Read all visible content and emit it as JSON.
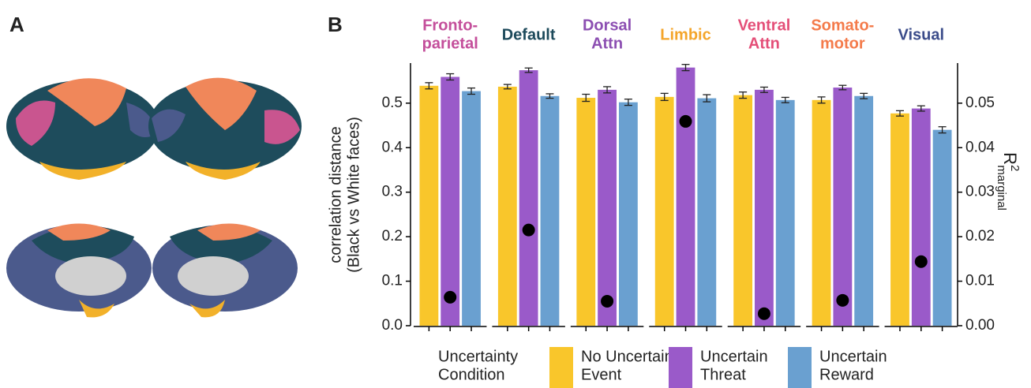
{
  "panels": {
    "a": "A",
    "b": "B"
  },
  "chart_data": {
    "type": "bar",
    "facets": [
      {
        "title": "Fronto-\nparietal",
        "color": "#c44f9b"
      },
      {
        "title": "Default",
        "color": "#1d4a5b"
      },
      {
        "title": "Dorsal\nAttn",
        "color": "#8c4fb2"
      },
      {
        "title": "Limbic",
        "color": "#f4a52a"
      },
      {
        "title": "Ventral\nAttn",
        "color": "#e44f78"
      },
      {
        "title": "Somato-\nmotor",
        "color": "#f47b4b"
      },
      {
        "title": "Visual",
        "color": "#3b4c8a"
      }
    ],
    "ylabel": "correlation distance\n(Black vs White faces)",
    "y2label": {
      "main": "R",
      "sup": "2",
      "sub": "marginal"
    },
    "ylim": [
      0,
      0.59
    ],
    "yticks": [
      {
        "value": 0,
        "label": "0.0"
      },
      0.1,
      0.2,
      0.3,
      0.4,
      0.5
    ],
    "y2lim": [
      0,
      0.059
    ],
    "y2ticks": [
      {
        "value": 0,
        "label": "0.00"
      },
      0.01,
      0.02,
      0.03,
      0.04,
      0.05
    ],
    "series": [
      {
        "name": "No Uncertain\nEvent",
        "color": "#f9c62b",
        "values": [
          0.539,
          0.537,
          0.512,
          0.514,
          0.518,
          0.507,
          0.477
        ],
        "errors": [
          0.007,
          0.005,
          0.008,
          0.008,
          0.007,
          0.007,
          0.006
        ]
      },
      {
        "name": "Uncertain\nThreat",
        "color": "#9a5ac9",
        "values": [
          0.559,
          0.574,
          0.53,
          0.58,
          0.53,
          0.535,
          0.488
        ],
        "errors": [
          0.007,
          0.005,
          0.007,
          0.007,
          0.006,
          0.005,
          0.006
        ]
      },
      {
        "name": "Uncertain\nReward",
        "color": "#6aa0d0",
        "values": [
          0.527,
          0.516,
          0.502,
          0.511,
          0.507,
          0.516,
          0.44
        ],
        "errors": [
          0.007,
          0.005,
          0.007,
          0.008,
          0.006,
          0.006,
          0.007
        ]
      }
    ],
    "r2_marginal": {
      "axis": "y2",
      "color": "#000000",
      "values": [
        0.0064,
        0.0215,
        0.0055,
        0.0459,
        0.0027,
        0.0057,
        0.0144
      ]
    },
    "legend": {
      "title": "Uncertainty\nCondition",
      "position": "bottom"
    }
  }
}
